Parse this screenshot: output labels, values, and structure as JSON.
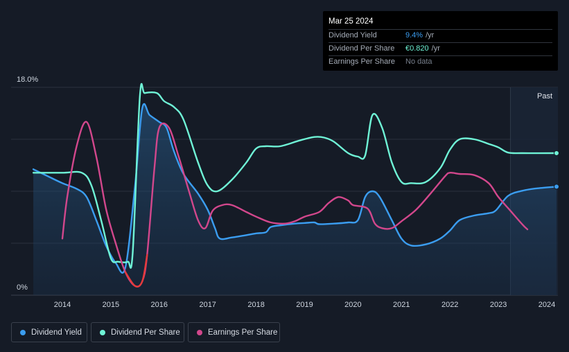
{
  "tooltip": {
    "date": "Mar 25 2024",
    "rows": [
      {
        "label": "Dividend Yield",
        "value": "9.4%",
        "unit": "/yr",
        "color": "#3b9df0"
      },
      {
        "label": "Dividend Per Share",
        "value": "€0.820",
        "unit": "/yr",
        "color": "#6ff3d6"
      },
      {
        "label": "Earnings Per Share",
        "value": "No data",
        "unit": "",
        "color": "#777f8c"
      }
    ]
  },
  "legend": [
    {
      "label": "Dividend Yield",
      "color": "#3b9df0"
    },
    {
      "label": "Dividend Per Share",
      "color": "#6ff3d6"
    },
    {
      "label": "Earnings Per Share",
      "color": "#d2478c"
    }
  ],
  "chart_data": {
    "type": "line",
    "ylim": [
      0,
      18
    ],
    "y_ticks": [
      "18.0%",
      "0%"
    ],
    "x_ticks": [
      "2014",
      "2015",
      "2016",
      "2017",
      "2018",
      "2019",
      "2020",
      "2021",
      "2022",
      "2023",
      "2024"
    ],
    "past_label": "Past",
    "past_start": 2023.25,
    "grid": true,
    "series": [
      {
        "name": "Dividend Yield",
        "color": "#3b9df0",
        "area": true,
        "points": [
          [
            2013.4,
            10.9
          ],
          [
            2013.7,
            10.3
          ],
          [
            2014.0,
            9.7
          ],
          [
            2014.3,
            9.2
          ],
          [
            2014.5,
            8.5
          ],
          [
            2014.7,
            6.5
          ],
          [
            2014.9,
            4.3
          ],
          [
            2015.1,
            2.8
          ],
          [
            2015.3,
            2.4
          ],
          [
            2015.5,
            9.5
          ],
          [
            2015.65,
            16.2
          ],
          [
            2015.8,
            15.6
          ],
          [
            2016.0,
            15.0
          ],
          [
            2016.15,
            14.5
          ],
          [
            2016.3,
            12.5
          ],
          [
            2016.5,
            10.5
          ],
          [
            2016.8,
            8.8
          ],
          [
            2017.0,
            7.4
          ],
          [
            2017.15,
            5.8
          ],
          [
            2017.25,
            4.9
          ],
          [
            2017.5,
            5.0
          ],
          [
            2017.8,
            5.2
          ],
          [
            2018.0,
            5.35
          ],
          [
            2018.2,
            5.45
          ],
          [
            2018.3,
            5.9
          ],
          [
            2018.5,
            6.05
          ],
          [
            2018.8,
            6.2
          ],
          [
            2019.0,
            6.25
          ],
          [
            2019.2,
            6.3
          ],
          [
            2019.3,
            6.15
          ],
          [
            2019.6,
            6.2
          ],
          [
            2019.9,
            6.3
          ],
          [
            2020.1,
            6.5
          ],
          [
            2020.25,
            8.5
          ],
          [
            2020.4,
            9.0
          ],
          [
            2020.55,
            8.5
          ],
          [
            2020.8,
            6.5
          ],
          [
            2021.0,
            4.9
          ],
          [
            2021.2,
            4.3
          ],
          [
            2021.5,
            4.4
          ],
          [
            2021.8,
            4.9
          ],
          [
            2022.0,
            5.6
          ],
          [
            2022.2,
            6.5
          ],
          [
            2022.5,
            6.9
          ],
          [
            2022.8,
            7.1
          ],
          [
            2022.95,
            7.35
          ],
          [
            2023.2,
            8.6
          ],
          [
            2023.5,
            9.05
          ],
          [
            2023.8,
            9.25
          ],
          [
            2024.2,
            9.4
          ]
        ]
      },
      {
        "name": "Dividend Per Share",
        "color": "#6ff3d6",
        "area": false,
        "points": [
          [
            2013.4,
            10.6
          ],
          [
            2014.0,
            10.6
          ],
          [
            2014.4,
            10.6
          ],
          [
            2014.6,
            9.5
          ],
          [
            2014.8,
            6.5
          ],
          [
            2015.0,
            3.2
          ],
          [
            2015.15,
            2.9
          ],
          [
            2015.35,
            2.9
          ],
          [
            2015.45,
            3.6
          ],
          [
            2015.6,
            17.2
          ],
          [
            2015.7,
            17.5
          ],
          [
            2015.95,
            17.5
          ],
          [
            2016.1,
            16.8
          ],
          [
            2016.3,
            16.3
          ],
          [
            2016.5,
            15.2
          ],
          [
            2016.8,
            11.5
          ],
          [
            2017.0,
            9.5
          ],
          [
            2017.2,
            9.0
          ],
          [
            2017.5,
            10.0
          ],
          [
            2017.8,
            11.5
          ],
          [
            2018.0,
            12.7
          ],
          [
            2018.2,
            12.9
          ],
          [
            2018.5,
            12.9
          ],
          [
            2018.9,
            13.4
          ],
          [
            2019.2,
            13.7
          ],
          [
            2019.4,
            13.65
          ],
          [
            2019.6,
            13.3
          ],
          [
            2019.9,
            12.3
          ],
          [
            2020.1,
            12.0
          ],
          [
            2020.25,
            12.1
          ],
          [
            2020.4,
            15.6
          ],
          [
            2020.6,
            14.5
          ],
          [
            2020.8,
            11.5
          ],
          [
            2021.0,
            9.8
          ],
          [
            2021.2,
            9.7
          ],
          [
            2021.5,
            9.8
          ],
          [
            2021.8,
            11.0
          ],
          [
            2022.0,
            12.6
          ],
          [
            2022.2,
            13.5
          ],
          [
            2022.5,
            13.5
          ],
          [
            2022.8,
            13.1
          ],
          [
            2023.0,
            12.8
          ],
          [
            2023.2,
            12.35
          ],
          [
            2023.5,
            12.3
          ],
          [
            2024.2,
            12.3
          ]
        ]
      },
      {
        "name": "Earnings Per Share",
        "color": "#d2478c",
        "neg_color": "#e63a3a",
        "area": false,
        "points": [
          [
            2014.0,
            4.9
          ],
          [
            2014.1,
            8.5
          ],
          [
            2014.3,
            13.0
          ],
          [
            2014.5,
            15.0
          ],
          [
            2014.7,
            12.0
          ],
          [
            2014.9,
            7.5
          ],
          [
            2015.1,
            4.5
          ],
          [
            2015.3,
            2.0
          ],
          [
            2015.5,
            0.8
          ],
          [
            2015.65,
            1.2
          ],
          [
            2015.75,
            3.5
          ],
          [
            2015.9,
            11.0
          ],
          [
            2016.0,
            14.5
          ],
          [
            2016.2,
            14.5
          ],
          [
            2016.4,
            12.0
          ],
          [
            2016.6,
            9.2
          ],
          [
            2016.8,
            6.5
          ],
          [
            2016.95,
            5.8
          ],
          [
            2017.1,
            7.3
          ],
          [
            2017.3,
            7.8
          ],
          [
            2017.5,
            7.8
          ],
          [
            2017.8,
            7.2
          ],
          [
            2018.0,
            6.8
          ],
          [
            2018.3,
            6.3
          ],
          [
            2018.6,
            6.2
          ],
          [
            2018.8,
            6.4
          ],
          [
            2019.0,
            6.8
          ],
          [
            2019.3,
            7.2
          ],
          [
            2019.5,
            8.0
          ],
          [
            2019.7,
            8.5
          ],
          [
            2019.9,
            8.2
          ],
          [
            2020.0,
            7.8
          ],
          [
            2020.3,
            7.5
          ],
          [
            2020.45,
            6.2
          ],
          [
            2020.6,
            5.8
          ],
          [
            2020.8,
            5.8
          ],
          [
            2021.0,
            6.4
          ],
          [
            2021.3,
            7.4
          ],
          [
            2021.6,
            8.8
          ],
          [
            2021.9,
            10.3
          ],
          [
            2022.0,
            10.6
          ],
          [
            2022.2,
            10.5
          ],
          [
            2022.5,
            10.4
          ],
          [
            2022.8,
            9.7
          ],
          [
            2023.0,
            8.5
          ],
          [
            2023.25,
            7.3
          ],
          [
            2023.5,
            6.1
          ],
          [
            2023.6,
            5.7
          ]
        ]
      }
    ]
  }
}
